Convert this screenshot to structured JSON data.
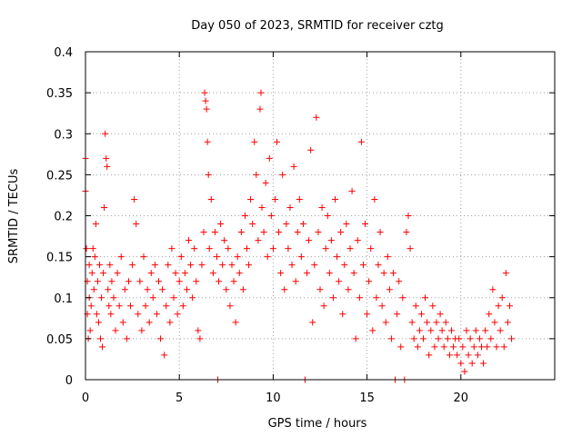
{
  "chart_data": {
    "type": "scatter",
    "title": "Day 050 of 2023, SRMTID for receiver cztg",
    "xlabel": "GPS time / hours",
    "ylabel": "SRMTID / TECUs",
    "xlim": [
      0,
      25
    ],
    "ylim": [
      0,
      0.4
    ],
    "x_ticks": [
      0,
      5,
      10,
      15,
      20
    ],
    "x_tick_labels": [
      "0",
      "5",
      "10",
      "15",
      "20"
    ],
    "y_ticks": [
      0,
      0.05,
      0.1,
      0.15,
      0.2,
      0.25,
      0.3,
      0.35,
      0.4
    ],
    "y_tick_labels": [
      "0",
      "0.05",
      "0.1",
      "0.15",
      "0.2",
      "0.25",
      "0.3",
      "0.35",
      "0.4"
    ],
    "grid": true,
    "marker": "plus",
    "color": "#ff0000",
    "series": [
      {
        "name": "SRMTID",
        "points": [
          [
            0.0,
            0.27
          ],
          [
            0.0,
            0.23
          ],
          [
            0.05,
            0.16
          ],
          [
            0.1,
            0.12
          ],
          [
            0.1,
            0.08
          ],
          [
            0.15,
            0.05
          ],
          [
            0.2,
            0.1
          ],
          [
            0.2,
            0.14
          ],
          [
            0.25,
            0.06
          ],
          [
            0.3,
            0.09
          ],
          [
            0.35,
            0.13
          ],
          [
            0.4,
            0.16
          ],
          [
            0.45,
            0.11
          ],
          [
            0.5,
            0.15
          ],
          [
            0.55,
            0.19
          ],
          [
            0.6,
            0.08
          ],
          [
            0.65,
            0.12
          ],
          [
            0.7,
            0.07
          ],
          [
            0.75,
            0.14
          ],
          [
            0.8,
            0.05
          ],
          [
            0.85,
            0.1
          ],
          [
            0.9,
            0.04
          ],
          [
            0.95,
            0.13
          ],
          [
            1.0,
            0.21
          ],
          [
            1.05,
            0.3
          ],
          [
            1.1,
            0.27
          ],
          [
            1.15,
            0.26
          ],
          [
            1.2,
            0.11
          ],
          [
            1.25,
            0.09
          ],
          [
            1.3,
            0.14
          ],
          [
            1.35,
            0.08
          ],
          [
            1.4,
            0.12
          ],
          [
            1.5,
            0.1
          ],
          [
            1.6,
            0.06
          ],
          [
            1.7,
            0.13
          ],
          [
            1.8,
            0.09
          ],
          [
            1.9,
            0.15
          ],
          [
            2.0,
            0.07
          ],
          [
            2.1,
            0.11
          ],
          [
            2.2,
            0.05
          ],
          [
            2.3,
            0.12
          ],
          [
            2.4,
            0.09
          ],
          [
            2.5,
            0.14
          ],
          [
            2.6,
            0.22
          ],
          [
            2.7,
            0.19
          ],
          [
            2.8,
            0.08
          ],
          [
            2.9,
            0.12
          ],
          [
            3.0,
            0.06
          ],
          [
            3.1,
            0.15
          ],
          [
            3.2,
            0.09
          ],
          [
            3.3,
            0.11
          ],
          [
            3.4,
            0.07
          ],
          [
            3.5,
            0.13
          ],
          [
            3.6,
            0.1
          ],
          [
            3.7,
            0.14
          ],
          [
            3.8,
            0.08
          ],
          [
            3.9,
            0.12
          ],
          [
            4.0,
            0.05
          ],
          [
            4.1,
            0.11
          ],
          [
            4.2,
            0.03
          ],
          [
            4.3,
            0.09
          ],
          [
            4.4,
            0.14
          ],
          [
            4.5,
            0.07
          ],
          [
            4.6,
            0.16
          ],
          [
            4.7,
            0.1
          ],
          [
            4.8,
            0.13
          ],
          [
            4.9,
            0.08
          ],
          [
            5.0,
            0.12
          ],
          [
            5.1,
            0.15
          ],
          [
            5.2,
            0.09
          ],
          [
            5.3,
            0.13
          ],
          [
            5.4,
            0.11
          ],
          [
            5.5,
            0.17
          ],
          [
            5.6,
            0.14
          ],
          [
            5.7,
            0.1
          ],
          [
            5.8,
            0.16
          ],
          [
            5.9,
            0.12
          ],
          [
            6.0,
            0.06
          ],
          [
            6.1,
            0.05
          ],
          [
            6.2,
            0.14
          ],
          [
            6.3,
            0.18
          ],
          [
            6.35,
            0.35
          ],
          [
            6.4,
            0.34
          ],
          [
            6.45,
            0.33
          ],
          [
            6.5,
            0.29
          ],
          [
            6.55,
            0.25
          ],
          [
            6.6,
            0.16
          ],
          [
            6.7,
            0.22
          ],
          [
            6.8,
            0.13
          ],
          [
            6.9,
            0.18
          ],
          [
            7.0,
            0.15
          ],
          [
            7.05,
            0.0
          ],
          [
            7.1,
            0.12
          ],
          [
            7.2,
            0.19
          ],
          [
            7.3,
            0.14
          ],
          [
            7.4,
            0.17
          ],
          [
            7.5,
            0.11
          ],
          [
            7.6,
            0.16
          ],
          [
            7.7,
            0.09
          ],
          [
            7.8,
            0.14
          ],
          [
            7.9,
            0.12
          ],
          [
            8.0,
            0.07
          ],
          [
            8.1,
            0.15
          ],
          [
            8.2,
            0.13
          ],
          [
            8.3,
            0.18
          ],
          [
            8.4,
            0.11
          ],
          [
            8.5,
            0.2
          ],
          [
            8.6,
            0.16
          ],
          [
            8.7,
            0.14
          ],
          [
            8.8,
            0.22
          ],
          [
            8.9,
            0.19
          ],
          [
            9.0,
            0.29
          ],
          [
            9.1,
            0.25
          ],
          [
            9.2,
            0.17
          ],
          [
            9.3,
            0.33
          ],
          [
            9.35,
            0.35
          ],
          [
            9.4,
            0.21
          ],
          [
            9.5,
            0.18
          ],
          [
            9.6,
            0.24
          ],
          [
            9.7,
            0.15
          ],
          [
            9.8,
            0.27
          ],
          [
            9.9,
            0.2
          ],
          [
            10.0,
            0.16
          ],
          [
            10.1,
            0.22
          ],
          [
            10.2,
            0.29
          ],
          [
            10.3,
            0.18
          ],
          [
            10.4,
            0.13
          ],
          [
            10.5,
            0.25
          ],
          [
            10.6,
            0.11
          ],
          [
            10.7,
            0.19
          ],
          [
            10.8,
            0.16
          ],
          [
            10.9,
            0.21
          ],
          [
            11.0,
            0.14
          ],
          [
            11.1,
            0.26
          ],
          [
            11.2,
            0.12
          ],
          [
            11.3,
            0.18
          ],
          [
            11.4,
            0.22
          ],
          [
            11.5,
            0.15
          ],
          [
            11.6,
            0.19
          ],
          [
            11.7,
            0.0
          ],
          [
            11.8,
            0.13
          ],
          [
            11.9,
            0.17
          ],
          [
            12.0,
            0.28
          ],
          [
            12.1,
            0.07
          ],
          [
            12.2,
            0.14
          ],
          [
            12.3,
            0.32
          ],
          [
            12.4,
            0.18
          ],
          [
            12.5,
            0.11
          ],
          [
            12.6,
            0.21
          ],
          [
            12.7,
            0.09
          ],
          [
            12.8,
            0.16
          ],
          [
            12.9,
            0.2
          ],
          [
            13.0,
            0.13
          ],
          [
            13.1,
            0.17
          ],
          [
            13.2,
            0.1
          ],
          [
            13.3,
            0.22
          ],
          [
            13.4,
            0.15
          ],
          [
            13.5,
            0.12
          ],
          [
            13.6,
            0.18
          ],
          [
            13.7,
            0.08
          ],
          [
            13.8,
            0.14
          ],
          [
            13.9,
            0.19
          ],
          [
            14.0,
            0.11
          ],
          [
            14.1,
            0.16
          ],
          [
            14.2,
            0.23
          ],
          [
            14.3,
            0.13
          ],
          [
            14.4,
            0.05
          ],
          [
            14.5,
            0.17
          ],
          [
            14.6,
            0.1
          ],
          [
            14.7,
            0.29
          ],
          [
            14.8,
            0.14
          ],
          [
            14.9,
            0.19
          ],
          [
            15.0,
            0.08
          ],
          [
            15.1,
            0.12
          ],
          [
            15.2,
            0.16
          ],
          [
            15.3,
            0.06
          ],
          [
            15.4,
            0.22
          ],
          [
            15.5,
            0.1
          ],
          [
            15.6,
            0.14
          ],
          [
            15.7,
            0.18
          ],
          [
            15.8,
            0.09
          ],
          [
            15.9,
            0.13
          ],
          [
            16.0,
            0.07
          ],
          [
            16.1,
            0.15
          ],
          [
            16.2,
            0.11
          ],
          [
            16.3,
            0.05
          ],
          [
            16.4,
            0.13
          ],
          [
            16.5,
            0.0
          ],
          [
            16.6,
            0.08
          ],
          [
            16.7,
            0.12
          ],
          [
            16.8,
            0.04
          ],
          [
            16.9,
            0.1
          ],
          [
            17.0,
            0.0
          ],
          [
            17.1,
            0.18
          ],
          [
            17.2,
            0.2
          ],
          [
            17.3,
            0.16
          ],
          [
            17.4,
            0.07
          ],
          [
            17.5,
            0.05
          ],
          [
            17.6,
            0.09
          ],
          [
            17.7,
            0.04
          ],
          [
            17.8,
            0.06
          ],
          [
            17.9,
            0.08
          ],
          [
            18.0,
            0.05
          ],
          [
            18.1,
            0.1
          ],
          [
            18.2,
            0.07
          ],
          [
            18.3,
            0.03
          ],
          [
            18.4,
            0.06
          ],
          [
            18.5,
            0.09
          ],
          [
            18.6,
            0.04
          ],
          [
            18.7,
            0.07
          ],
          [
            18.8,
            0.05
          ],
          [
            18.9,
            0.08
          ],
          [
            19.0,
            0.06
          ],
          [
            19.1,
            0.04
          ],
          [
            19.2,
            0.07
          ],
          [
            19.3,
            0.05
          ],
          [
            19.4,
            0.03
          ],
          [
            19.5,
            0.06
          ],
          [
            19.6,
            0.04
          ],
          [
            19.7,
            0.05
          ],
          [
            19.8,
            0.03
          ],
          [
            19.9,
            0.05
          ],
          [
            20.0,
            0.02
          ],
          [
            20.1,
            0.04
          ],
          [
            20.2,
            0.01
          ],
          [
            20.3,
            0.06
          ],
          [
            20.4,
            0.03
          ],
          [
            20.5,
            0.05
          ],
          [
            20.6,
            0.02
          ],
          [
            20.7,
            0.04
          ],
          [
            20.8,
            0.06
          ],
          [
            20.9,
            0.03
          ],
          [
            21.0,
            0.05
          ],
          [
            21.1,
            0.04
          ],
          [
            21.2,
            0.02
          ],
          [
            21.3,
            0.06
          ],
          [
            21.4,
            0.04
          ],
          [
            21.5,
            0.08
          ],
          [
            21.6,
            0.05
          ],
          [
            21.7,
            0.11
          ],
          [
            21.8,
            0.07
          ],
          [
            21.9,
            0.04
          ],
          [
            22.0,
            0.09
          ],
          [
            22.1,
            0.06
          ],
          [
            22.2,
            0.1
          ],
          [
            22.3,
            0.04
          ],
          [
            22.4,
            0.13
          ],
          [
            22.5,
            0.07
          ],
          [
            22.6,
            0.09
          ],
          [
            22.7,
            0.05
          ]
        ]
      }
    ]
  }
}
